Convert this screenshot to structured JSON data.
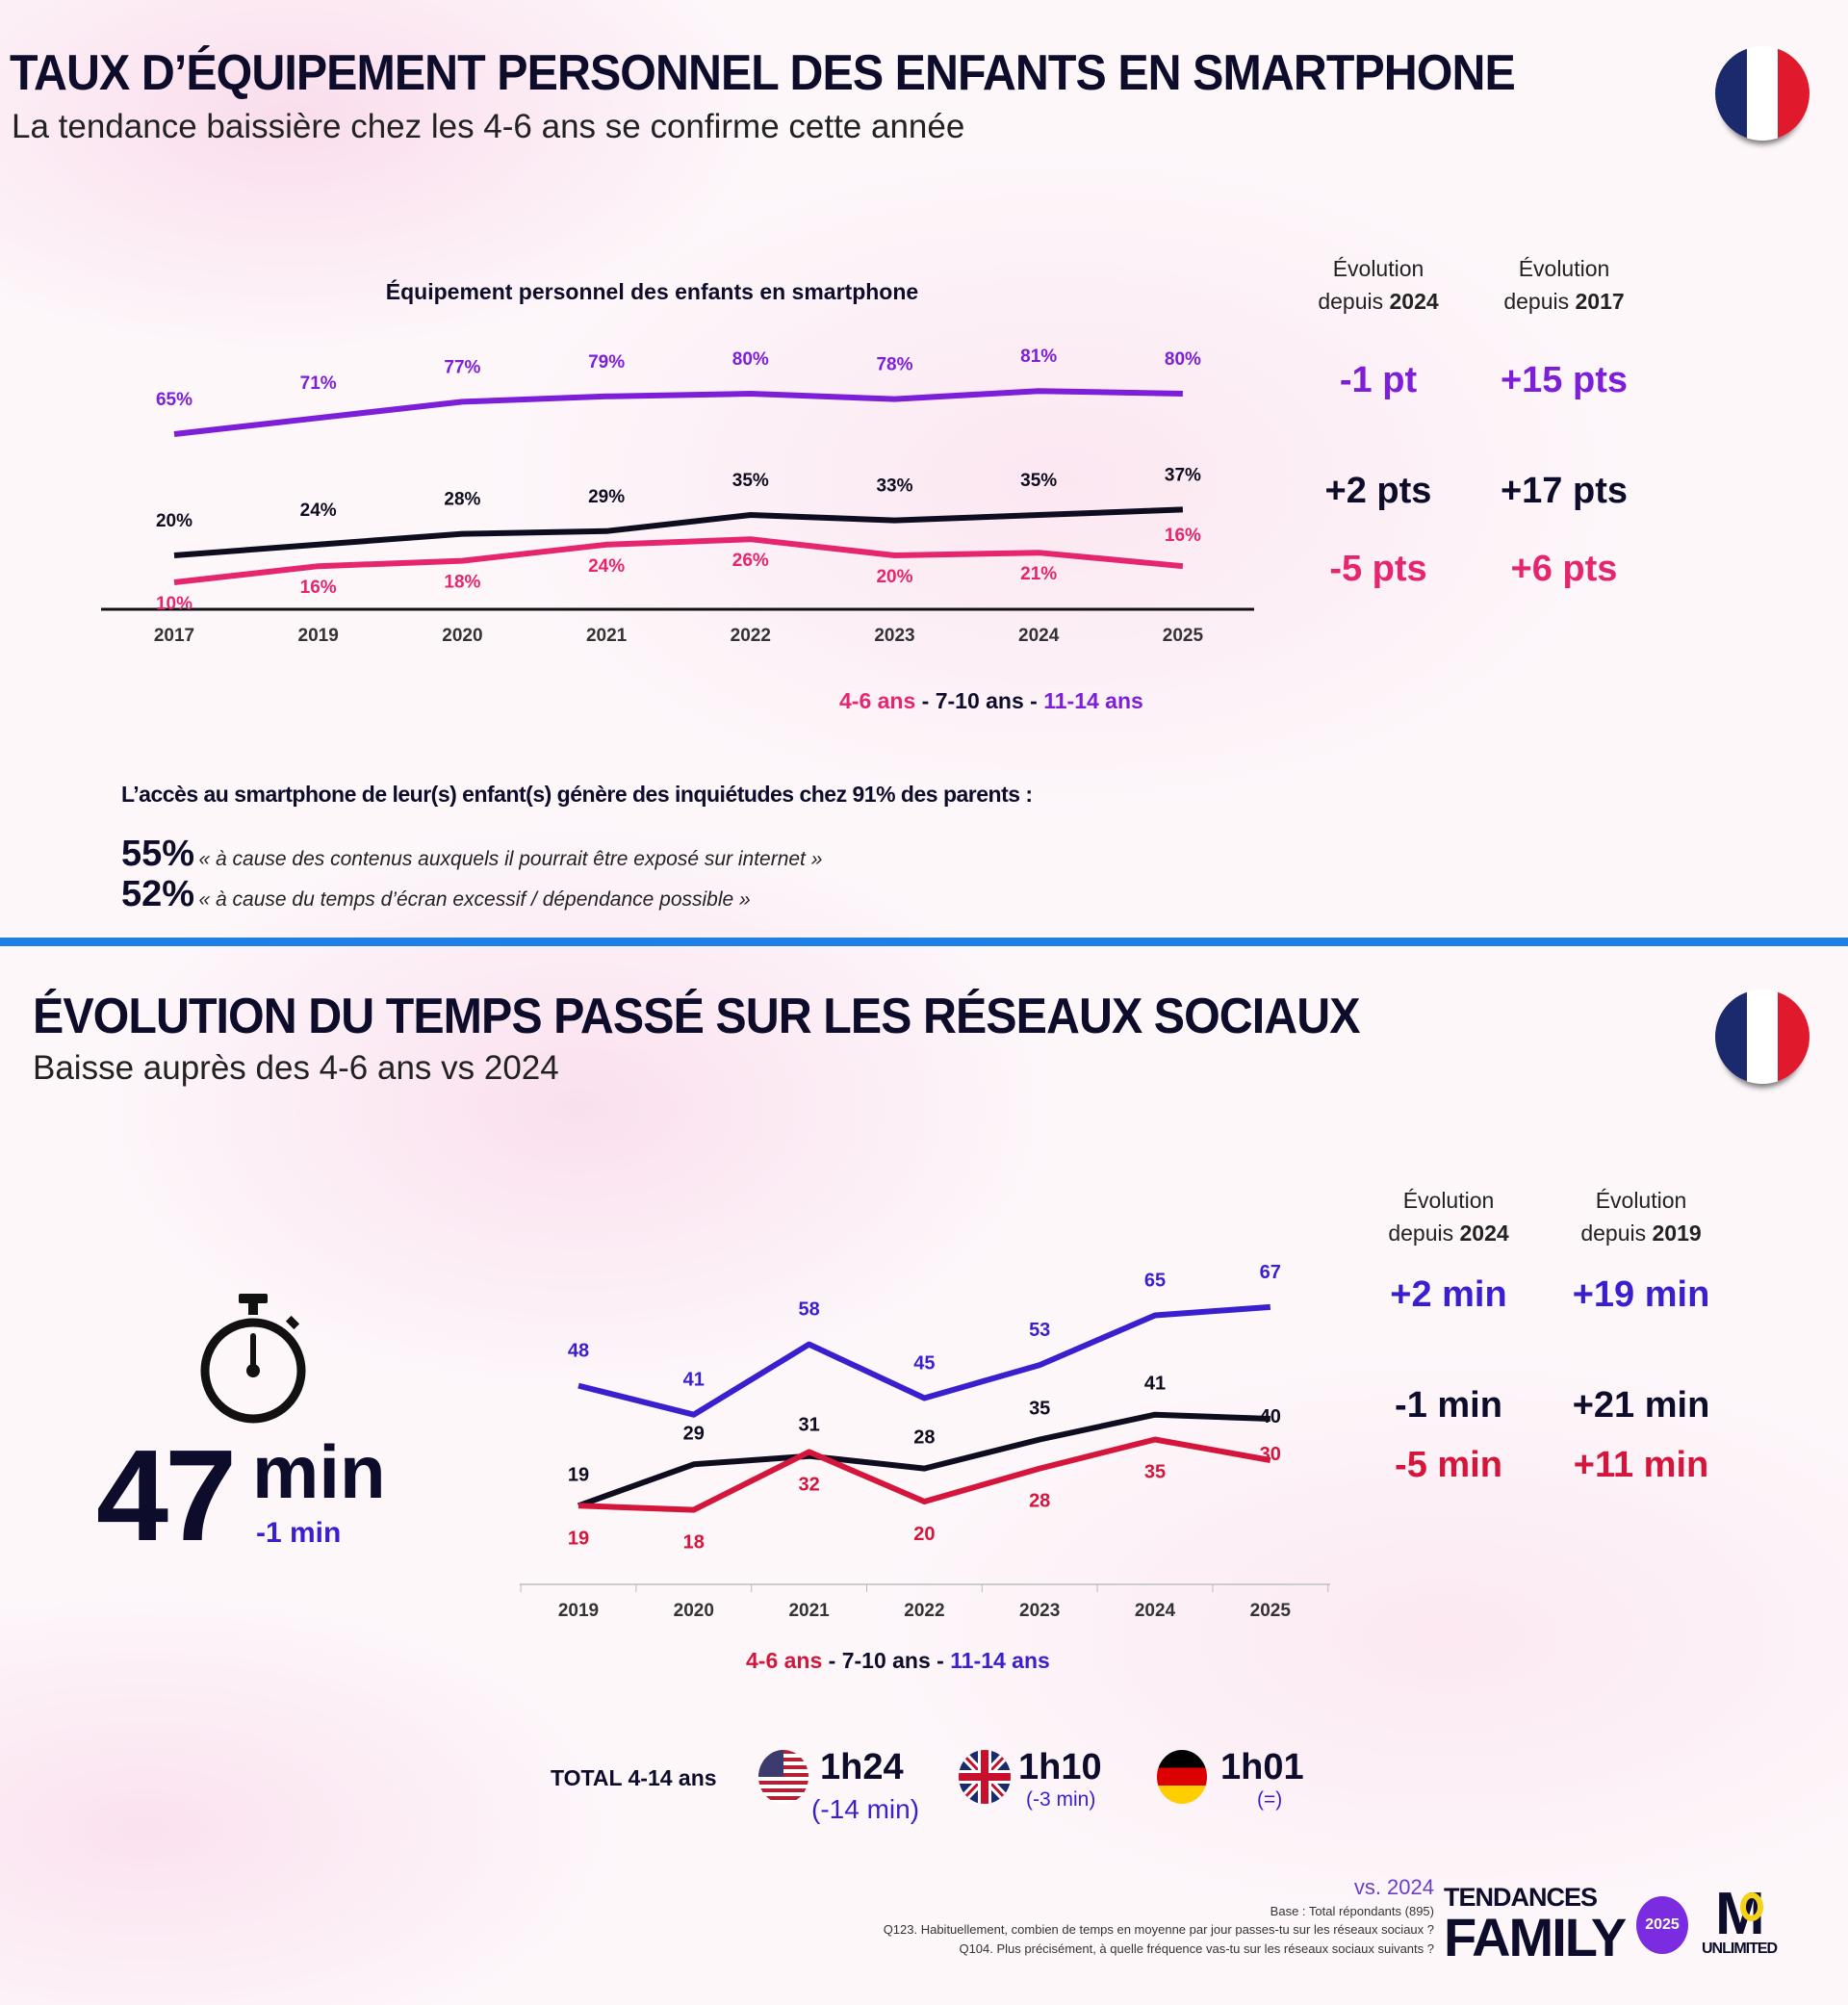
{
  "section1": {
    "title": "TAUX D’ÉQUIPEMENT PERSONNEL DES ENFANTS EN SMARTPHONE",
    "subtitle": "La tendance baissière chez les 4-6 ans se confirme cette année",
    "col1": {
      "line1": "Évolution",
      "line2": "depuis",
      "year": "2024"
    },
    "col2": {
      "line1": "Évolution",
      "line2": "depuis",
      "year": "2017"
    },
    "evolutions": [
      {
        "group": "11-14 ans",
        "since_2024": "-1 pt",
        "since_2017": "+15 pts"
      },
      {
        "group": "7-10 ans",
        "since_2024": "+2 pts",
        "since_2017": "+17 pts"
      },
      {
        "group": "4-6 ans",
        "since_2024": "-5 pts",
        "since_2017": "+6 pts"
      }
    ],
    "legend": {
      "a": "4-6 ans",
      "sep1": " - ",
      "b": "7-10 ans",
      "sep2": " - ",
      "c": "11-14 ans"
    },
    "concerns": {
      "intro": "L’accès au smartphone de leur(s) enfant(s) génère des inquiétudes chez 91% des parents :",
      "items": [
        {
          "pct": "55%",
          "text": "« à cause des contenus auxquels il pourrait être exposé sur internet »"
        },
        {
          "pct": "52%",
          "text": "« à cause du temps d’écran excessif / dépendance possible »"
        }
      ]
    }
  },
  "section2": {
    "title": "ÉVOLUTION DU TEMPS PASSÉ SUR LES RÉSEAUX SOCIAUX",
    "subtitle": "Baisse auprès des 4-6 ans vs 2024",
    "col1": {
      "line1": "Évolution",
      "line2": "depuis",
      "year": "2024"
    },
    "col2": {
      "line1": "Évolution",
      "line2": "depuis",
      "year": "2019"
    },
    "evolutions": [
      {
        "group": "11-14 ans",
        "since_2024": "+2 min",
        "since_2019": "+19 min"
      },
      {
        "group": "7-10 ans",
        "since_2024": "-1 min",
        "since_2019": "+21 min"
      },
      {
        "group": "4-6 ans",
        "since_2024": "-5 min",
        "since_2019": "+11 min"
      }
    ],
    "kpi": {
      "value": "47",
      "unit": "min",
      "change": "-1 min"
    },
    "legend": {
      "a": "4-6 ans",
      "sep1": " - ",
      "b": "7-10 ans",
      "sep2": " - ",
      "c": "11-14 ans"
    },
    "totals": {
      "label": "TOTAL 4-14 ans",
      "countries": [
        {
          "flag": "us-flag",
          "value": "1h24",
          "change": "(-14 min)"
        },
        {
          "flag": "uk-flag",
          "value": "1h10",
          "change": "(-3 min)"
        },
        {
          "flag": "de-flag",
          "value": "1h01",
          "change": "(=)"
        }
      ]
    }
  },
  "footer": {
    "vs": "vs. 2024",
    "base": "Base : Total répondants (895)",
    "q1": "Q123. Habituellement, combien de temps en moyenne par jour passes-tu sur les réseaux sociaux ?",
    "q2": "Q104. Plus précisément, à quelle fréquence vas-tu sur les réseaux sociaux suivants ?",
    "logo1_top": "TENDANCES",
    "logo1_bottom": "FAMILY",
    "logo1_badge": "2025",
    "logo2": "UNLIMITED"
  },
  "colors": {
    "purple": "#7d1fd8",
    "black": "#0d0d1f",
    "pink": "#e5266e",
    "blue": "#3a1fcf",
    "red": "#d4163c",
    "divider": "#1e7fe6"
  },
  "chart_data": [
    {
      "type": "line",
      "title": "Équipement personnel des enfants en smartphone",
      "unit": "%",
      "categories": [
        "2017",
        "2019",
        "2020",
        "2021",
        "2022",
        "2023",
        "2024",
        "2025"
      ],
      "series": [
        {
          "name": "11-14 ans",
          "color": "#7d1fd8",
          "values": [
            65,
            71,
            77,
            79,
            80,
            78,
            81,
            80
          ]
        },
        {
          "name": "7-10 ans",
          "color": "#0d0d1f",
          "values": [
            20,
            24,
            28,
            29,
            35,
            33,
            35,
            37
          ]
        },
        {
          "name": "4-6 ans",
          "color": "#e5266e",
          "values": [
            10,
            16,
            18,
            24,
            26,
            20,
            21,
            16
          ]
        }
      ]
    },
    {
      "type": "line",
      "title": "",
      "unit": "min",
      "categories": [
        "2019",
        "2020",
        "2021",
        "2022",
        "2023",
        "2024",
        "2025"
      ],
      "series": [
        {
          "name": "11-14 ans",
          "color": "#3a1fcf",
          "values": [
            48,
            41,
            58,
            45,
            53,
            65,
            67
          ]
        },
        {
          "name": "7-10 ans",
          "color": "#0d0d1f",
          "values": [
            19,
            29,
            31,
            28,
            35,
            41,
            40
          ]
        },
        {
          "name": "4-6 ans",
          "color": "#d4163c",
          "values": [
            19,
            18,
            32,
            20,
            28,
            35,
            30
          ]
        }
      ]
    }
  ]
}
